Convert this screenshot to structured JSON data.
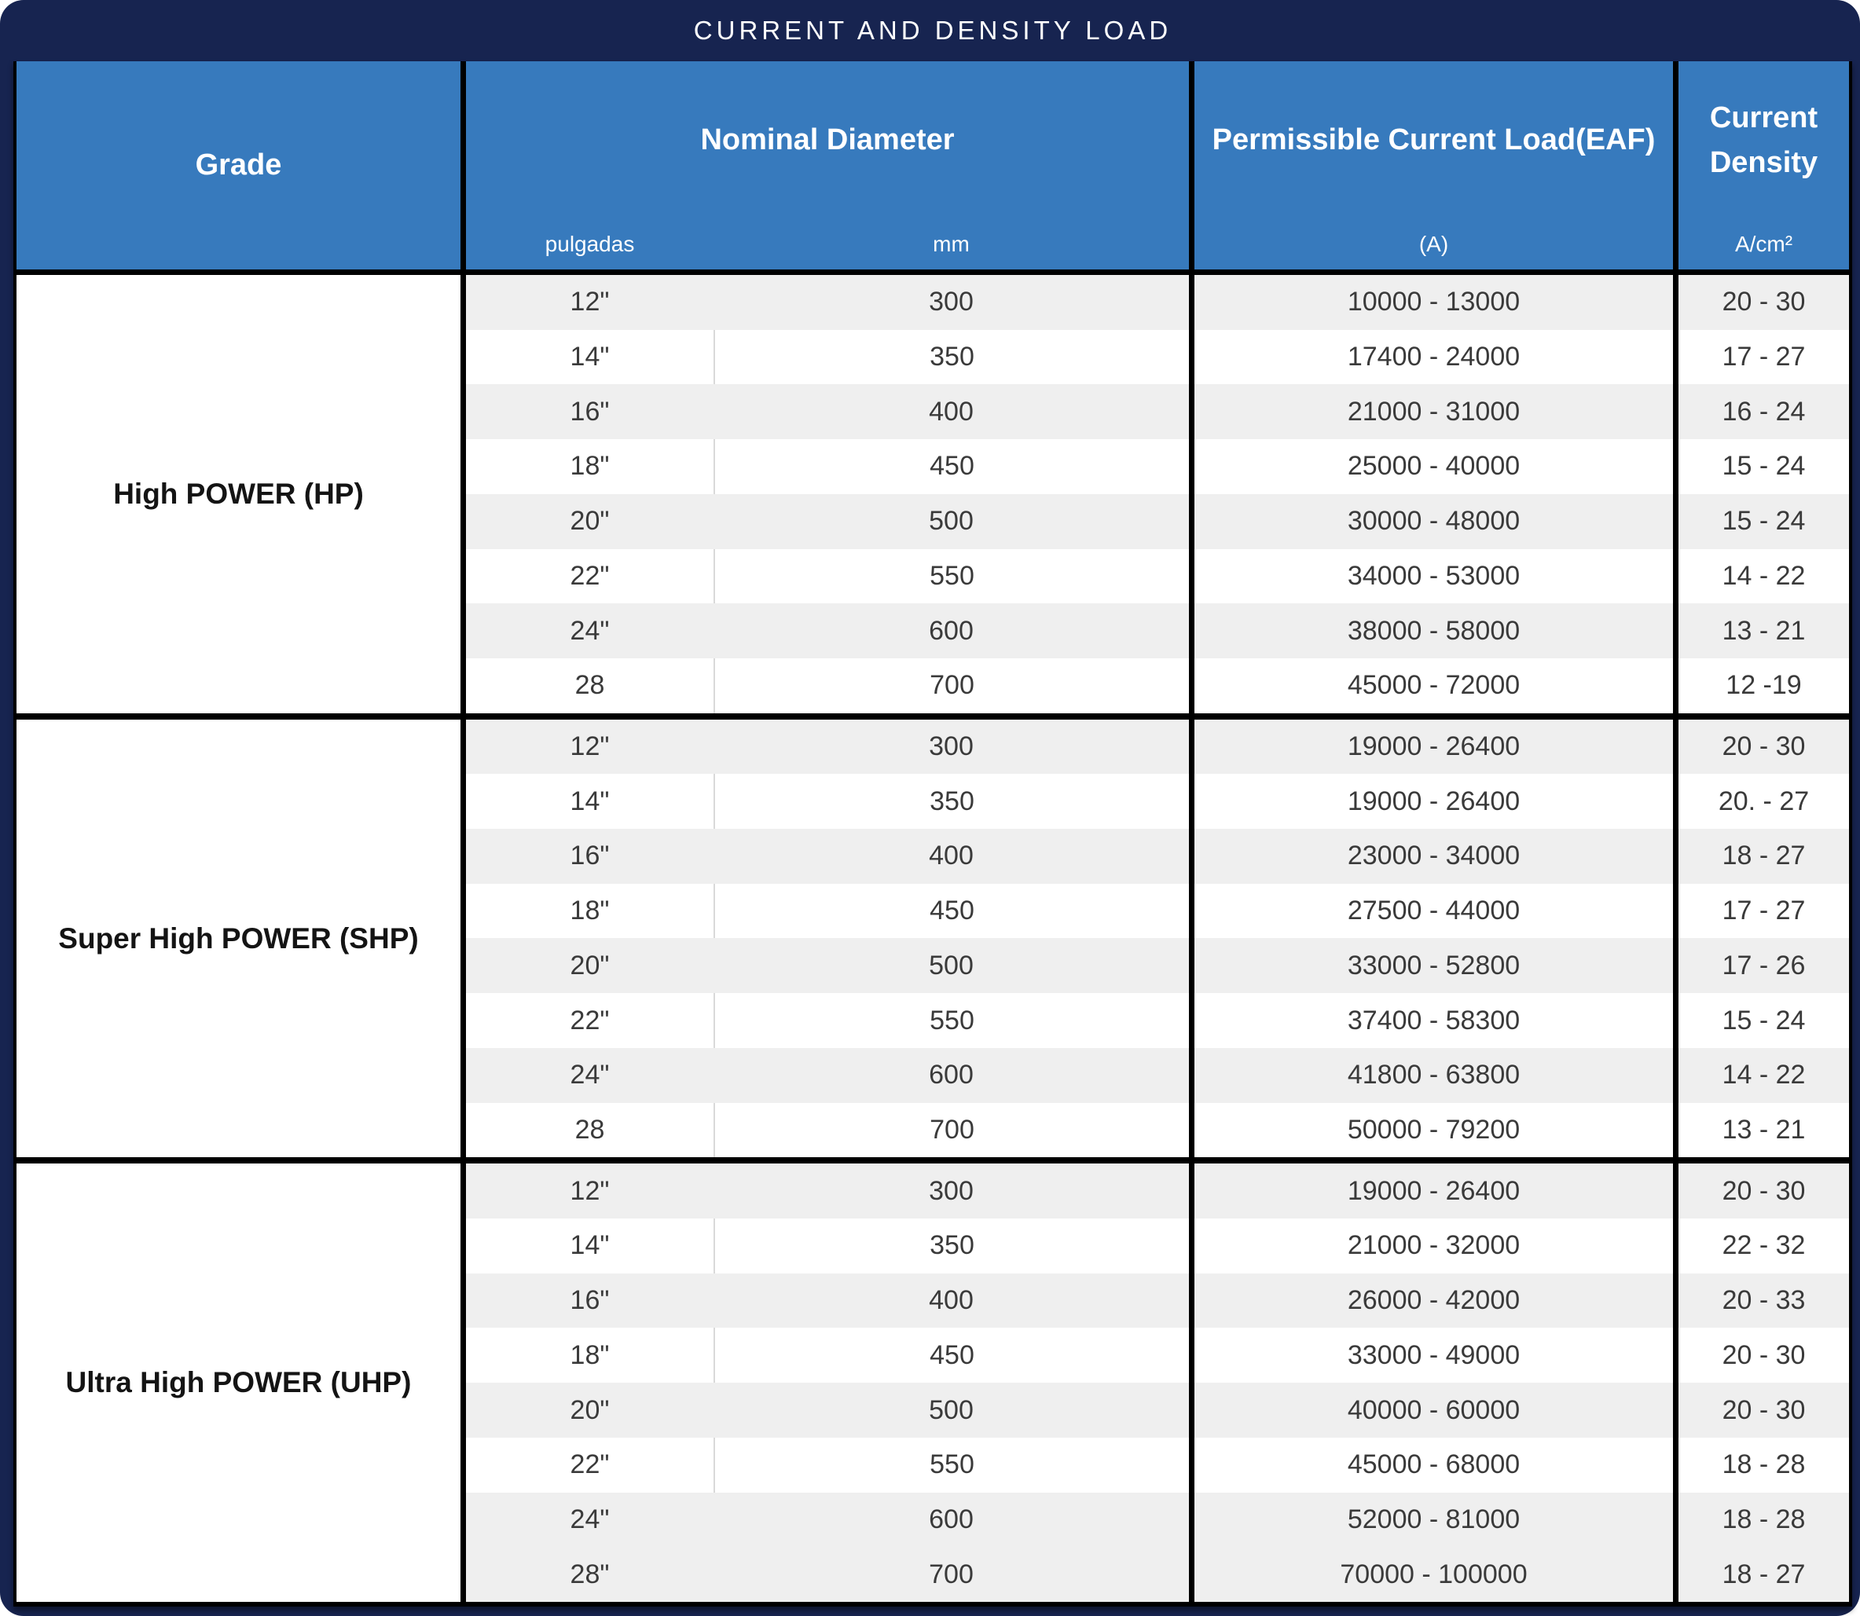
{
  "title": "CURRENT AND DENSITY LOAD",
  "header": {
    "grade": "Grade",
    "nominal_diameter": "Nominal Diameter",
    "sub_pulgadas": "pulgadas",
    "sub_mm": "mm",
    "load_line1": "Permissible Current Load",
    "load_line2": "(EAF)",
    "sub_a": "(A)",
    "density": "Current Density",
    "sub_acm2": "A/cm²"
  },
  "groups": [
    {
      "grade": "High POWER (HP)",
      "rows": [
        {
          "pulgadas": "12\"",
          "mm": "300",
          "load": "10000 - 13000",
          "density": "20 - 30"
        },
        {
          "pulgadas": "14\"",
          "mm": "350",
          "load": "17400 - 24000",
          "density": "17 - 27"
        },
        {
          "pulgadas": "16\"",
          "mm": "400",
          "load": "21000 - 31000",
          "density": "16 - 24"
        },
        {
          "pulgadas": "18\"",
          "mm": "450",
          "load": "25000 - 40000",
          "density": "15 - 24"
        },
        {
          "pulgadas": "20\"",
          "mm": "500",
          "load": "30000 - 48000",
          "density": "15 - 24"
        },
        {
          "pulgadas": "22\"",
          "mm": "550",
          "load": "34000 - 53000",
          "density": "14 - 22"
        },
        {
          "pulgadas": "24\"",
          "mm": "600",
          "load": "38000 - 58000",
          "density": "13 - 21"
        },
        {
          "pulgadas": "28",
          "mm": "700",
          "load": "45000 - 72000",
          "density": "12 -19"
        }
      ]
    },
    {
      "grade": "Super High POWER (SHP)",
      "rows": [
        {
          "pulgadas": "12\"",
          "mm": "300",
          "load": "19000 - 26400",
          "density": "20 - 30"
        },
        {
          "pulgadas": "14\"",
          "mm": "350",
          "load": "19000 - 26400",
          "density": "20. - 27"
        },
        {
          "pulgadas": "16\"",
          "mm": "400",
          "load": "23000 - 34000",
          "density": "18 - 27"
        },
        {
          "pulgadas": "18\"",
          "mm": "450",
          "load": "27500 - 44000",
          "density": "17 - 27"
        },
        {
          "pulgadas": "20\"",
          "mm": "500",
          "load": "33000 - 52800",
          "density": "17 - 26"
        },
        {
          "pulgadas": "22\"",
          "mm": "550",
          "load": "37400 - 58300",
          "density": "15 - 24"
        },
        {
          "pulgadas": "24\"",
          "mm": "600",
          "load": "41800 - 63800",
          "density": "14 - 22"
        },
        {
          "pulgadas": "28",
          "mm": "700",
          "load": "50000 - 79200",
          "density": "13 - 21"
        }
      ]
    },
    {
      "grade": "Ultra High POWER (UHP)",
      "rows": [
        {
          "pulgadas": "12\"",
          "mm": "300",
          "load": "19000 - 26400",
          "density": "20 - 30"
        },
        {
          "pulgadas": "14\"",
          "mm": "350",
          "load": "21000 - 32000",
          "density": "22 - 32"
        },
        {
          "pulgadas": "16\"",
          "mm": "400",
          "load": "26000 - 42000",
          "density": "20 - 33"
        },
        {
          "pulgadas": "18\"",
          "mm": "450",
          "load": "33000 - 49000",
          "density": "20 - 30"
        },
        {
          "pulgadas": "20\"",
          "mm": "500",
          "load": "40000 - 60000",
          "density": "20 - 30"
        },
        {
          "pulgadas": "22\"",
          "mm": "550",
          "load": "45000 - 68000",
          "density": "18 - 28"
        },
        {
          "pulgadas": "24\"",
          "mm": "600",
          "load": "52000 - 81000",
          "density": "18 - 28"
        },
        {
          "pulgadas": "28\"",
          "mm": "700",
          "load": "70000 - 100000",
          "density": "18 - 27"
        }
      ]
    }
  ],
  "colors": {
    "background_navy": "#172450",
    "header_blue": "#377ABD",
    "row_alt_gray": "#EFEFEF",
    "border_black": "#000000",
    "body_text": "#3A3A3A"
  }
}
